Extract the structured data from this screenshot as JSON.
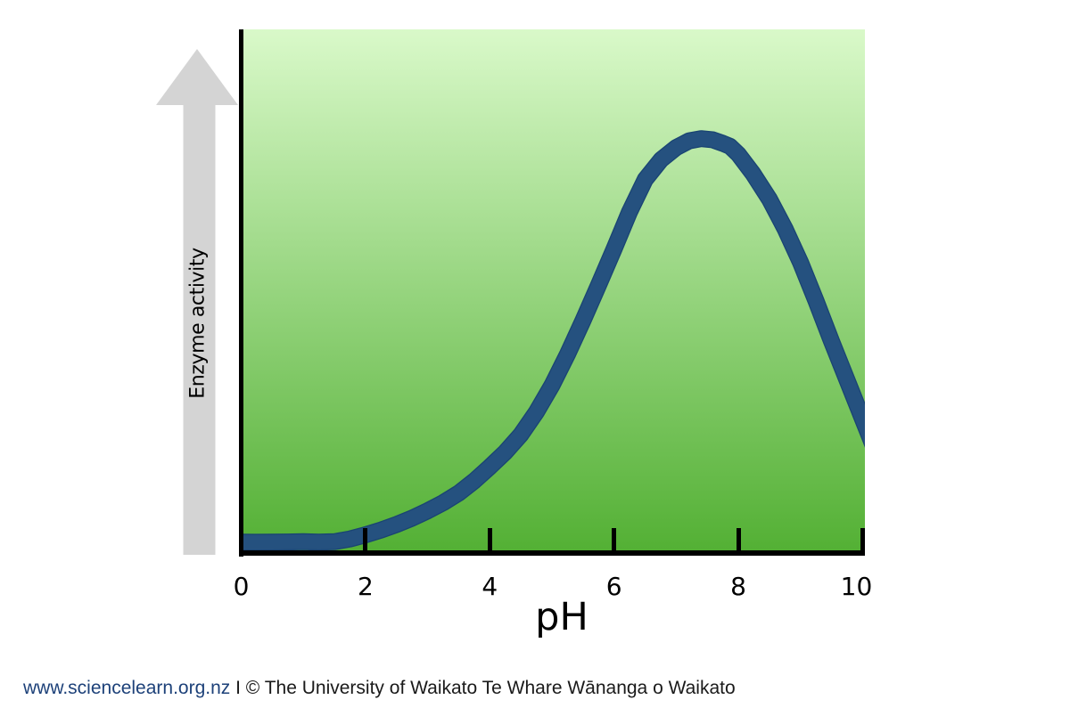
{
  "chart_data": {
    "type": "line",
    "title": "",
    "xlabel": "pH",
    "ylabel": "Enzyme activity",
    "x_ticks": [
      0,
      2,
      4,
      6,
      8,
      10
    ],
    "xlim": [
      0,
      10
    ],
    "ylim": [
      0,
      100
    ],
    "y_axis_has_numbers": false,
    "grid": false,
    "legend": false,
    "series": [
      {
        "name": "Enzyme activity",
        "x": [
          0,
          0.5,
          1,
          1.5,
          2,
          2.5,
          3,
          3.5,
          4,
          4.5,
          5,
          5.5,
          6,
          6.5,
          7,
          7.4,
          7.75,
          8,
          8.5,
          9,
          9.5,
          10
        ],
        "y": [
          1.9,
          1.9,
          2.0,
          2.0,
          3.3,
          5.3,
          7.9,
          11.3,
          16.3,
          22.5,
          31.9,
          44.3,
          58.0,
          71.3,
          77.4,
          79.1,
          78.2,
          76.1,
          67.5,
          55.4,
          40.3,
          25.4
        ]
      }
    ],
    "peak": {
      "ph": 7.4,
      "activity": 79.1
    },
    "line_color": "#25517f",
    "line_edge_color": "#1a4473",
    "line_width": 19,
    "axis_color": "#000000",
    "plot_bg_gradient": [
      "#d9f9c9",
      "#53b034"
    ]
  },
  "figure": {
    "arrow_color": "#d4d4d4"
  },
  "footer": {
    "link": "www.sciencelearn.org.nz",
    "separator": " I ",
    "credit": "© The University of Waikato Te Whare Wānanga o Waikato",
    "link_color": "#1d4179"
  }
}
